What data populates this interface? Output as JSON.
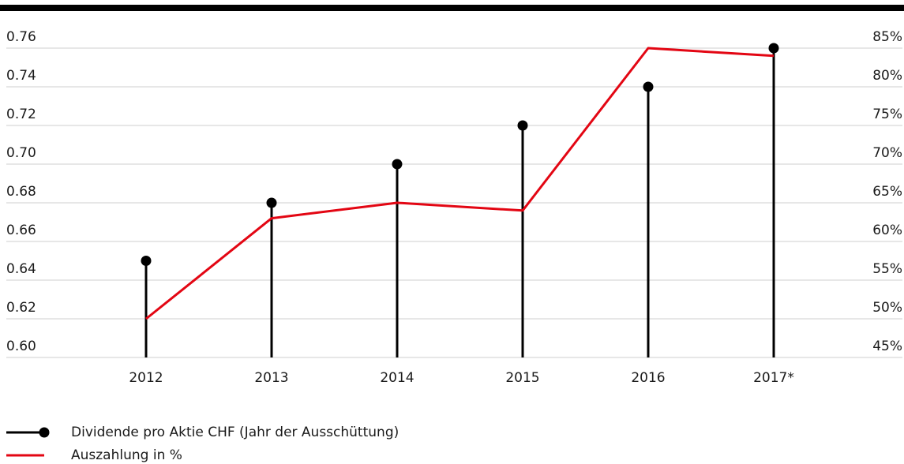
{
  "chart_data": {
    "type": "combo",
    "categories": [
      "2012",
      "2013",
      "2014",
      "2015",
      "2016",
      "2017*"
    ],
    "series": [
      {
        "name": "Dividende pro Aktie CHF (Jahr der Ausschüttung)",
        "type": "lollipop",
        "color": "#000000",
        "values": [
          0.65,
          0.68,
          0.7,
          0.72,
          0.74,
          0.76
        ]
      },
      {
        "name": "Auszahlung in %",
        "type": "line",
        "axis": "y2",
        "color": "#e30613",
        "values": [
          50,
          63,
          65,
          64,
          85,
          84
        ]
      }
    ],
    "ylim": [
      0.6,
      0.76
    ],
    "yticks": [
      {
        "value": 0.6,
        "label": "0.60"
      },
      0.62,
      0.64,
      0.66,
      0.68,
      {
        "value": 0.7,
        "label": "0.70"
      },
      0.72,
      0.74,
      0.76
    ],
    "y2lim": [
      45,
      85
    ],
    "y2ticks": [
      {
        "value": 45,
        "label": "45%"
      },
      {
        "value": 50,
        "label": "50%"
      },
      {
        "value": 55,
        "label": "55%"
      },
      {
        "value": 60,
        "label": "60%"
      },
      {
        "value": 65,
        "label": "65%"
      },
      {
        "value": 70,
        "label": "70%"
      },
      {
        "value": 75,
        "label": "75%"
      },
      {
        "value": 80,
        "label": "80%"
      },
      {
        "value": 85,
        "label": "85%"
      }
    ],
    "grid": true,
    "legend": "bottom-left"
  }
}
